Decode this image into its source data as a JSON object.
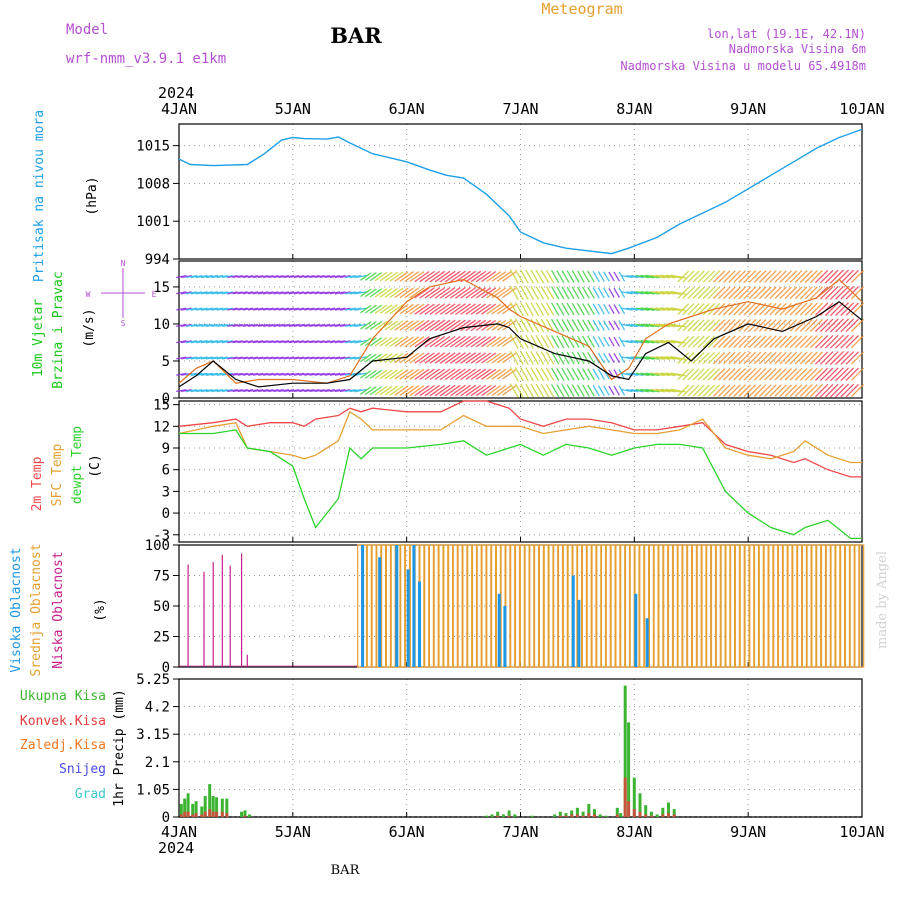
{
  "header": {
    "model_label": "Model",
    "model_name": "wrf-nmm_v3.9.1 e1km",
    "station": "BAR",
    "title": "Meteogram",
    "coords": "lon,lat (19.1E, 42.1N)",
    "elevation": "Nadmorska Visina 6m",
    "model_elevation": "Nadmorska Visina u modelu 65.4918m"
  },
  "footer": {
    "station": "BAR",
    "watermark": "made by Angel"
  },
  "time_axis": {
    "year": "2024",
    "ticks": [
      "4JAN",
      "5JAN",
      "6JAN",
      "7JAN",
      "8JAN",
      "9JAN",
      "10JAN"
    ]
  },
  "colors": {
    "pressure": "#1ea0e6",
    "wind_title": "#18c818",
    "wind_speed": "#000000",
    "wind_gust": "#e0701e",
    "temp_2m": "#f04848",
    "temp_sfc": "#e6a032",
    "dewpt": "#2ad42a",
    "cloud_high": "#1e96e6",
    "cloud_mid": "#e6a032",
    "cloud_low": "#c81e8c",
    "precip_total": "#3cb432",
    "precip_conv": "#e63c3c",
    "precip_frozen": "#f07820",
    "precip_snow": "#4a4ae6",
    "precip_graupel": "#3cc8c8",
    "header_purple": "#b450d2",
    "title_orange": "#e6a032"
  },
  "chart_data": [
    {
      "type": "line",
      "name": "pressure",
      "ylabel_left": "Pritisak na nivou mora",
      "ylabel_right": "(hPa)",
      "ylim": [
        994,
        1019
      ],
      "yticks": [
        994,
        1001,
        1008,
        1015
      ],
      "x_unit": "days since 4JAN 00Z",
      "x": [
        0,
        0.1,
        0.3,
        0.6,
        0.75,
        0.9,
        1.0,
        1.1,
        1.3,
        1.4,
        1.5,
        1.7,
        2.0,
        2.2,
        2.35,
        2.5,
        2.7,
        2.9,
        3.0,
        3.2,
        3.4,
        3.6,
        3.8,
        3.95,
        4.2,
        4.4,
        4.6,
        4.8,
        5.0,
        5.2,
        5.4,
        5.6,
        5.8,
        6.0
      ],
      "values": [
        1012.5,
        1011.5,
        1011.3,
        1011.5,
        1013.5,
        1016.0,
        1016.5,
        1016.3,
        1016.2,
        1016.6,
        1015.5,
        1013.5,
        1012.0,
        1010.5,
        1009.5,
        1009.0,
        1006.0,
        1002.0,
        999.0,
        997.0,
        996.0,
        995.5,
        995.0,
        996.0,
        998.0,
        1000.5,
        1002.5,
        1004.5,
        1007.0,
        1009.5,
        1012.0,
        1014.5,
        1016.5,
        1018.0
      ]
    },
    {
      "type": "line",
      "name": "wind",
      "ylabel_left_1": "10m Vjetar",
      "ylabel_left_2": "Brzina i Pravac",
      "ylabel_right": "(m/s)",
      "compass": [
        "N",
        "E",
        "W",
        "S"
      ],
      "ylim": [
        0,
        18.5
      ],
      "yticks": [
        0,
        5,
        10,
        15
      ],
      "x": [
        0,
        0.15,
        0.3,
        0.5,
        0.7,
        1.0,
        1.3,
        1.5,
        1.7,
        2.0,
        2.2,
        2.5,
        2.8,
        2.9,
        3.0,
        3.3,
        3.6,
        3.8,
        3.95,
        4.1,
        4.3,
        4.5,
        4.7,
        5.0,
        5.3,
        5.6,
        5.8,
        6.0
      ],
      "speed": [
        1.5,
        3.0,
        5.0,
        2.5,
        1.5,
        2.0,
        2.0,
        2.5,
        5.0,
        5.5,
        8.0,
        9.5,
        10.0,
        9.5,
        8.0,
        6.0,
        5.0,
        3.0,
        2.5,
        6.0,
        7.5,
        5.0,
        8.0,
        10.0,
        9.0,
        11.0,
        13.0,
        10.5
      ],
      "gust": [
        2.0,
        4.0,
        5.0,
        2.0,
        2.5,
        2.5,
        2.0,
        3.0,
        8.0,
        13.0,
        15.0,
        16.0,
        13.5,
        12.0,
        11.0,
        9.0,
        7.0,
        2.5,
        4.0,
        8.0,
        10.0,
        11.0,
        12.0,
        13.0,
        12.0,
        13.5,
        16.0,
        13.0
      ]
    },
    {
      "type": "line",
      "name": "temperature",
      "ylabel_1": "2m Temp",
      "ylabel_2": "SFC Temp",
      "ylabel_3": "dewpt Temp",
      "ylabel_right": "(C)",
      "ylim": [
        -4,
        15.5
      ],
      "yticks": [
        -3,
        0,
        3,
        6,
        9,
        12,
        15
      ],
      "x": [
        0,
        0.3,
        0.5,
        0.6,
        0.8,
        1.0,
        1.1,
        1.2,
        1.4,
        1.5,
        1.6,
        1.7,
        2.0,
        2.3,
        2.5,
        2.7,
        2.9,
        3.0,
        3.2,
        3.4,
        3.6,
        3.8,
        4.0,
        4.2,
        4.4,
        4.6,
        4.8,
        5.0,
        5.2,
        5.4,
        5.5,
        5.7,
        5.9,
        6.0
      ],
      "temp_2m": [
        12.0,
        12.5,
        13.0,
        12.0,
        12.5,
        12.5,
        12.0,
        13.0,
        13.5,
        14.5,
        14.0,
        14.5,
        14.0,
        14.0,
        15.5,
        15.5,
        14.5,
        13.0,
        12.0,
        13.0,
        13.0,
        12.5,
        11.5,
        11.5,
        12.0,
        12.5,
        9.5,
        8.5,
        8.0,
        7.0,
        7.5,
        6.0,
        5.0,
        5.0
      ],
      "temp_sfc": [
        11.0,
        12.0,
        12.5,
        9.0,
        8.5,
        8.0,
        7.5,
        8.0,
        10.0,
        14.0,
        13.0,
        11.5,
        11.5,
        11.5,
        13.5,
        12.0,
        12.0,
        12.0,
        11.0,
        11.5,
        12.0,
        11.5,
        11.0,
        11.0,
        11.5,
        13.0,
        9.0,
        8.0,
        7.5,
        8.5,
        10.0,
        8.0,
        7.0,
        7.0
      ],
      "dewpt": [
        11.0,
        11.0,
        11.5,
        9.0,
        8.5,
        6.5,
        2.0,
        -2.0,
        2.0,
        9.0,
        7.5,
        9.0,
        9.0,
        9.5,
        10.0,
        8.0,
        9.0,
        9.5,
        8.0,
        9.5,
        9.0,
        8.0,
        9.0,
        9.5,
        9.5,
        9.0,
        3.0,
        0.0,
        -2.0,
        -3.0,
        -2.0,
        -1.0,
        -3.5,
        -3.5
      ]
    },
    {
      "type": "bar",
      "name": "cloud_cover",
      "ylabel_1": "Visoka Oblacnost",
      "ylabel_2": "Srednja Oblacnost",
      "ylabel_3": "Niska Oblacnost",
      "ylabel_right": "(%)",
      "ylim": [
        0,
        100
      ],
      "yticks": [
        0,
        25,
        50,
        75,
        100
      ],
      "low_spikes": {
        "x": [
          0.08,
          0.22,
          0.3,
          0.38,
          0.45,
          0.55,
          0.6
        ],
        "values": [
          84,
          78,
          86,
          92,
          83,
          93,
          10
        ]
      },
      "mid_overcast_span": [
        1.57,
        6.0
      ],
      "mid_value": 100,
      "high_bars": {
        "x": [
          1.6,
          1.75,
          1.9,
          2.0,
          2.05,
          2.1,
          2.8,
          2.85,
          3.45,
          3.5,
          4.0,
          4.1
        ],
        "values": [
          100,
          90,
          100,
          80,
          100,
          70,
          60,
          50,
          75,
          55,
          60,
          40
        ]
      }
    },
    {
      "type": "bar",
      "name": "precipitation",
      "legend": [
        "Ukupna Kisa",
        "Konvek.Kisa",
        "Zaledj.Kisa",
        "Snijeg",
        "Grad"
      ],
      "ylabel_right": "1hr Precip (mm)",
      "ylim": [
        0,
        5.25
      ],
      "yticks": [
        "0",
        "1.05",
        "2.1",
        "3.15",
        "4.2",
        "5.25"
      ],
      "x": [
        0.02,
        0.05,
        0.08,
        0.12,
        0.15,
        0.2,
        0.23,
        0.27,
        0.3,
        0.33,
        0.38,
        0.42,
        0.55,
        0.58,
        0.62,
        2.7,
        2.75,
        2.8,
        2.85,
        2.9,
        2.95,
        3.1,
        3.3,
        3.35,
        3.4,
        3.45,
        3.5,
        3.55,
        3.6,
        3.65,
        3.7,
        3.75,
        3.85,
        3.88,
        3.92,
        3.95,
        4.0,
        4.05,
        4.1,
        4.15,
        4.2,
        4.25,
        4.3,
        4.35
      ],
      "values": [
        0.5,
        0.7,
        0.9,
        0.5,
        0.6,
        0.4,
        0.8,
        1.25,
        0.8,
        0.75,
        0.7,
        0.7,
        0.2,
        0.25,
        0.1,
        0.05,
        0.1,
        0.2,
        0.1,
        0.25,
        0.1,
        0.05,
        0.1,
        0.2,
        0.15,
        0.25,
        0.35,
        0.2,
        0.5,
        0.3,
        0.1,
        0.05,
        0.35,
        0.15,
        5.0,
        3.6,
        1.5,
        0.9,
        0.45,
        0.2,
        0.1,
        0.35,
        0.55,
        0.3
      ],
      "convective": [
        0.1,
        0.2,
        0.2,
        0.1,
        0.15,
        0.1,
        0.2,
        0.3,
        0.2,
        0.2,
        0.2,
        0.15,
        0.0,
        0.05,
        0.0,
        0.0,
        0.0,
        0.05,
        0.0,
        0.05,
        0.0,
        0.0,
        0.0,
        0.05,
        0.05,
        0.1,
        0.1,
        0.05,
        0.15,
        0.1,
        0.0,
        0.0,
        0.1,
        0.0,
        1.5,
        0.6,
        0.3,
        0.2,
        0.1,
        0.05,
        0.0,
        0.1,
        0.15,
        0.1
      ]
    }
  ]
}
